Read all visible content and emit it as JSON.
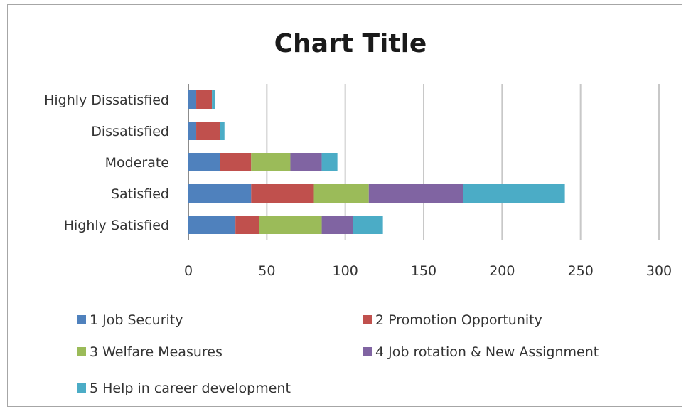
{
  "chart_data": {
    "type": "bar",
    "orientation": "horizontal",
    "stacked": true,
    "title": "Chart Title",
    "categories": [
      "Highly Dissatisfied",
      "Dissatisfied",
      "Moderate",
      "Satisfied",
      "Highly Satisfied"
    ],
    "series": [
      {
        "name": "1 Job Security",
        "color": "#4f81bd",
        "values": [
          5,
          5,
          20,
          40,
          30
        ]
      },
      {
        "name": "2 Promotion Opportunity",
        "color": "#c0504d",
        "values": [
          10,
          15,
          20,
          40,
          15
        ]
      },
      {
        "name": "3 Welfare Measures",
        "color": "#9bbb59",
        "values": [
          0,
          0,
          25,
          35,
          40
        ]
      },
      {
        "name": "4 Job rotation & New Assignment",
        "color": "#8064a2",
        "values": [
          0,
          0,
          20,
          60,
          20
        ]
      },
      {
        "name": "5 Help in career development",
        "color": "#4bacc6",
        "values": [
          2,
          3,
          10,
          65,
          19
        ]
      }
    ],
    "xlim": [
      0,
      300
    ],
    "xticks": [
      0,
      50,
      100,
      150,
      200,
      250,
      300
    ],
    "grid": "vertical",
    "legend": "bottom"
  }
}
